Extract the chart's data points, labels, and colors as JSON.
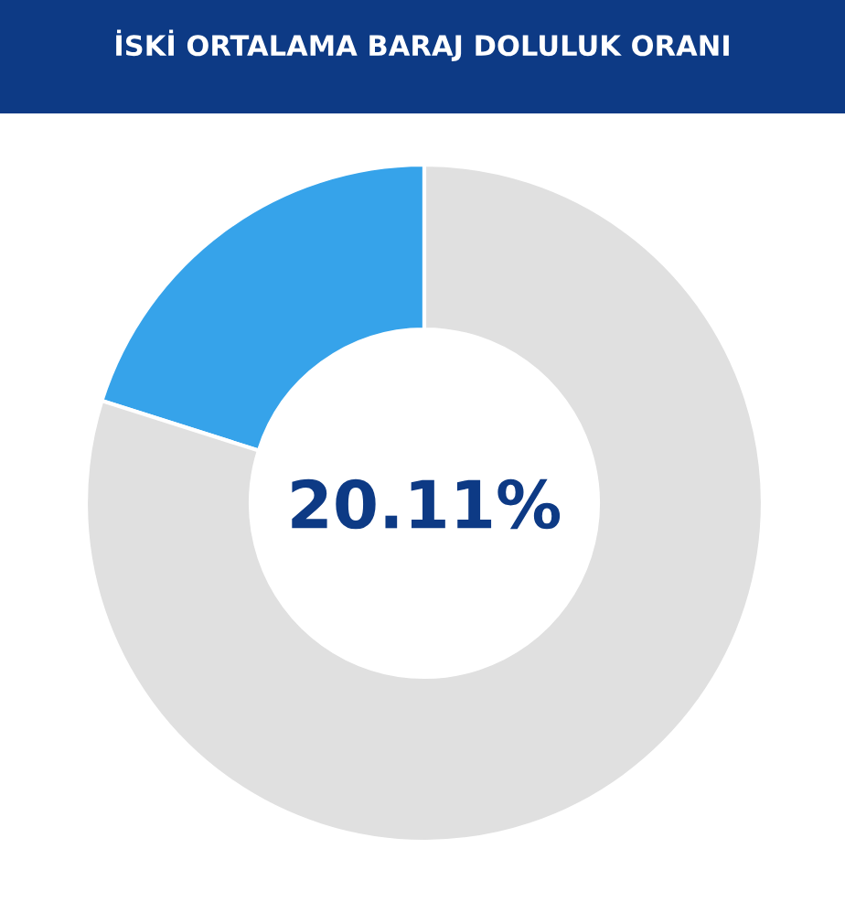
{
  "chart_data": {
    "type": "donut",
    "title": "İSKİ ORTALAMA BARAJ DOLULUK ORANI",
    "categories": [
      null,
      null
    ],
    "values": [
      20.11,
      79.89
    ],
    "colors": [
      "#36a3ea",
      "#e0e0e0"
    ],
    "annotations": [
      "20.11%"
    ]
  }
}
